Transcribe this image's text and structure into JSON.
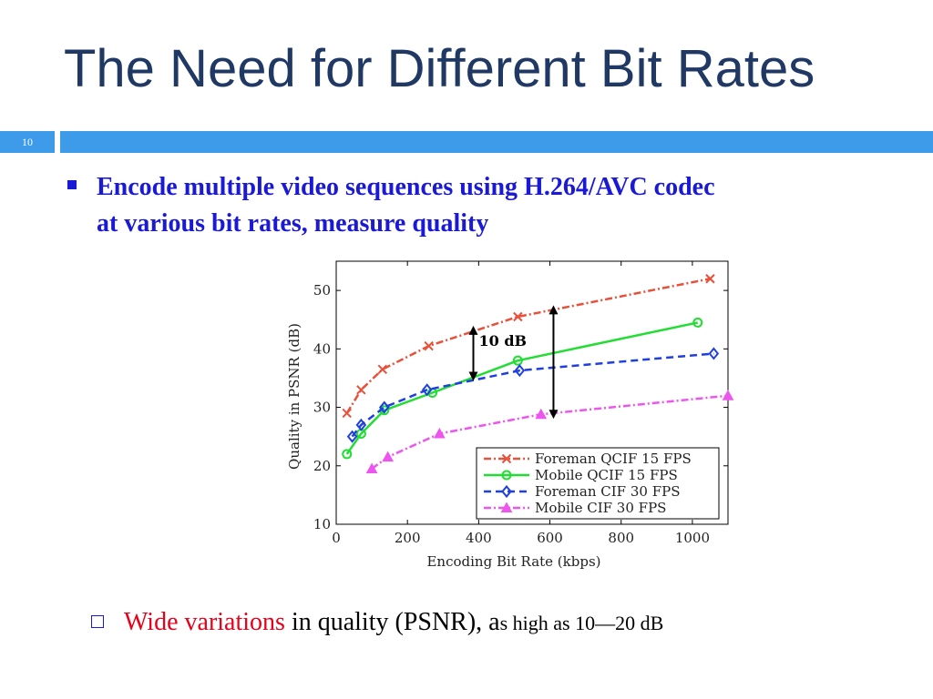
{
  "slide": {
    "title": "The Need for Different Bit Rates",
    "number": "10",
    "bullet_line1": "Encode multiple video sequences using H.264/AVC codec",
    "bullet_line2": "at various bit rates, measure quality",
    "sub_bullet": {
      "highlight": "Wide variations",
      "middle": " in quality (PSNR), a",
      "small": "s high as 10—20 dB"
    }
  },
  "colors": {
    "title": "#1f3864",
    "accent": "#3d9be9",
    "bullet": "#1a1ad6",
    "highlight": "#e8001a"
  },
  "chart_data": {
    "type": "line",
    "title": "",
    "xlabel": "Encoding Bit Rate (kbps)",
    "ylabel": "Quality in PSNR (dB)",
    "xlim": [
      0,
      1100
    ],
    "ylim": [
      10,
      55
    ],
    "xticks": [
      0,
      200,
      400,
      600,
      800,
      1000
    ],
    "yticks": [
      10,
      20,
      30,
      40,
      50
    ],
    "grid": false,
    "legend": "bottom-right",
    "annotation": {
      "label": "10 dB",
      "arrows": [
        {
          "x": 385,
          "y1": 35,
          "y2": 43.5
        },
        {
          "x": 610,
          "y1": 28.5,
          "y2": 47
        }
      ]
    },
    "series": [
      {
        "name": "Foreman QCIF 15 FPS",
        "color": "#e8503a",
        "dash": "8,3,2,3",
        "marker": "x",
        "x": [
          30,
          70,
          130,
          260,
          510,
          1050
        ],
        "y": [
          29,
          33,
          36.5,
          40.5,
          45.5,
          52
        ]
      },
      {
        "name": "Mobile QCIF 15 FPS",
        "color": "#22dd33",
        "dash": "",
        "marker": "circle",
        "x": [
          30,
          70,
          135,
          270,
          510,
          1015
        ],
        "y": [
          22,
          25.5,
          29.5,
          32.5,
          38,
          44.5
        ]
      },
      {
        "name": "Foreman CIF 30 FPS",
        "color": "#1f3fe0",
        "dash": "8,5",
        "marker": "diamond",
        "x": [
          45,
          70,
          135,
          255,
          515,
          1060
        ],
        "y": [
          25,
          27,
          30,
          33,
          36.3,
          39.2
        ]
      },
      {
        "name": "Mobile CIF 30 FPS",
        "color": "#ee55ee",
        "dash": "8,3,2,3",
        "marker": "triangle",
        "x": [
          100,
          145,
          290,
          575,
          1100
        ],
        "y": [
          19.5,
          21.5,
          25.5,
          28.8,
          32
        ]
      }
    ]
  }
}
